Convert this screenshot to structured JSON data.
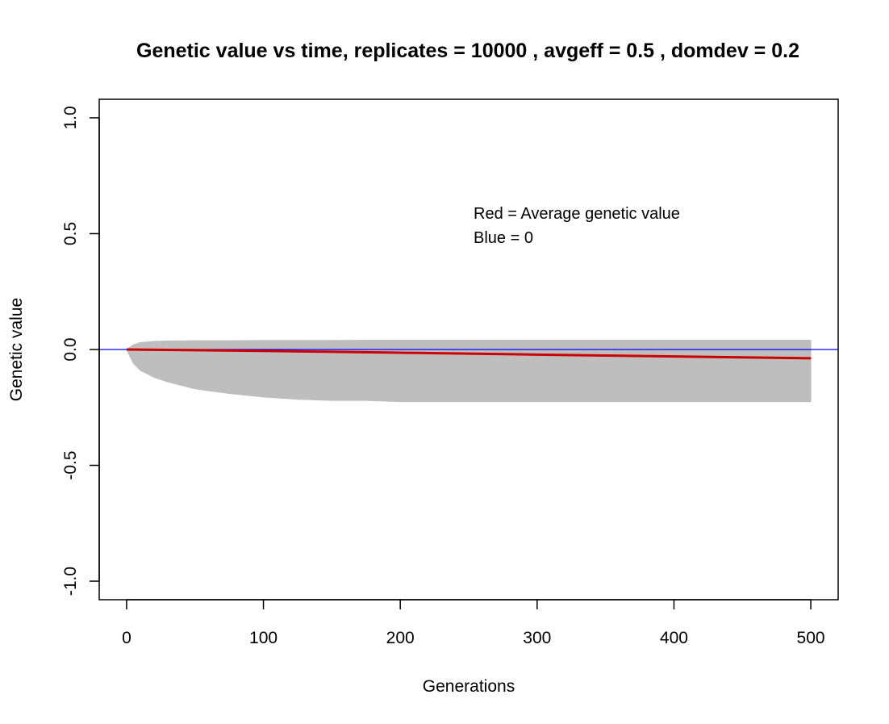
{
  "chart_data": {
    "type": "line",
    "title": "Genetic value vs time, replicates =  10000 , avgeff =  0.5  , domdev =  0.2",
    "xlabel": "Generations",
    "ylabel": "Genetic value",
    "xlim": [
      -20,
      520
    ],
    "ylim": [
      -1.08,
      1.08
    ],
    "x_ticks": [
      0,
      100,
      200,
      300,
      400,
      500
    ],
    "y_ticks": [
      -1.0,
      -0.5,
      0.0,
      0.5,
      1.0
    ],
    "x_tick_labels": [
      "0",
      "100",
      "200",
      "300",
      "400",
      "500"
    ],
    "y_tick_labels": [
      "-1.0",
      "-0.5",
      "0.0",
      "0.5",
      "1.0"
    ],
    "grid": false,
    "annotations": [
      "Red = Average genetic value",
      "Blue = 0"
    ],
    "colors": {
      "replicates": "#bebebe",
      "average": "#cc0000",
      "zero": "#0000ff",
      "axes": "#000000"
    },
    "series": [
      {
        "role": "replicate envelope (10000 replicate trajectories, gray)",
        "x": [
          0,
          5,
          10,
          20,
          30,
          50,
          75,
          100,
          125,
          150,
          175,
          200,
          250,
          300,
          350,
          400,
          450,
          500
        ],
        "upper": [
          0.0,
          0.02,
          0.03,
          0.035,
          0.037,
          0.038,
          0.038,
          0.039,
          0.039,
          0.039,
          0.04,
          0.04,
          0.04,
          0.04,
          0.04,
          0.04,
          0.04,
          0.04
        ],
        "lower": [
          0.0,
          -0.06,
          -0.09,
          -0.12,
          -0.14,
          -0.17,
          -0.19,
          -0.205,
          -0.215,
          -0.22,
          -0.22,
          -0.225,
          -0.225,
          -0.225,
          -0.225,
          -0.225,
          -0.225,
          -0.225
        ]
      },
      {
        "name": "Average genetic value",
        "x": [
          0,
          50,
          100,
          150,
          200,
          250,
          300,
          350,
          400,
          450,
          500
        ],
        "values": [
          0.0,
          -0.003,
          -0.006,
          -0.01,
          -0.014,
          -0.018,
          -0.022,
          -0.026,
          -0.03,
          -0.034,
          -0.038
        ]
      },
      {
        "name": "0",
        "x": [
          -20,
          520
        ],
        "values": [
          0.0,
          0.0
        ]
      }
    ]
  }
}
